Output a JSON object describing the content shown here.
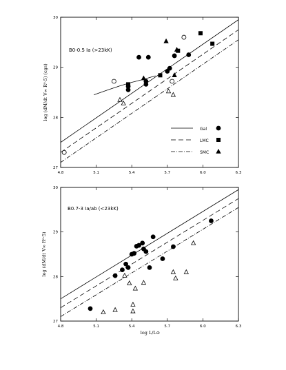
{
  "chart_data": [
    {
      "type": "scatter",
      "title": "B0-0.5 Ia (>23kK)",
      "xlabel": "",
      "ylabel": "log (dM/dt V∞ R⁰·5) (cgs)",
      "xlim": [
        4.8,
        6.3
      ],
      "ylim": [
        27,
        30
      ],
      "xticks": [
        "4.8",
        "5.1",
        "5.4",
        "5.7",
        "6.0",
        "6.3"
      ],
      "yticks": [
        "27",
        "28",
        "29",
        "30"
      ],
      "legend": {
        "placement": "middle-right",
        "entries": [
          {
            "label": "Gal",
            "line": "solid",
            "marker": "circle"
          },
          {
            "label": "LMC",
            "line": "dashed",
            "marker": "square"
          },
          {
            "label": "SMC",
            "line": "dashdot",
            "marker": "triangle"
          }
        ]
      },
      "lines": [
        {
          "name": "Gal",
          "style": "solid",
          "x": [
            4.8,
            6.3
          ],
          "y": [
            27.5,
            29.95
          ]
        },
        {
          "name": "LMC",
          "style": "dashed",
          "x": [
            4.8,
            6.3
          ],
          "y": [
            27.3,
            29.75
          ]
        },
        {
          "name": "SMC",
          "style": "dashdot",
          "x": [
            4.8,
            6.3
          ],
          "y": [
            27.1,
            29.55
          ]
        }
      ],
      "curve": {
        "x": [
          5.08,
          5.2,
          5.3,
          5.4,
          5.5,
          5.6
        ],
        "y": [
          28.45,
          28.55,
          28.63,
          28.7,
          28.76,
          28.83
        ]
      },
      "series": [
        {
          "name": "Gal filled",
          "marker": "circle",
          "filled": true,
          "x": [
            5.37,
            5.37,
            5.46,
            5.54,
            5.52,
            5.52,
            5.7,
            5.72,
            5.76,
            5.88
          ],
          "y": [
            28.62,
            28.55,
            29.2,
            29.2,
            28.72,
            28.66,
            28.92,
            28.98,
            29.23,
            29.25
          ]
        },
        {
          "name": "Gal open",
          "marker": "circle",
          "filled": false,
          "x": [
            4.83,
            5.25,
            5.74,
            5.84
          ],
          "y": [
            27.3,
            28.72,
            28.72,
            29.6
          ]
        },
        {
          "name": "LMC",
          "marker": "square",
          "filled": true,
          "x": [
            5.37,
            5.37,
            5.64,
            5.79,
            5.98,
            6.08
          ],
          "y": [
            28.66,
            28.63,
            28.84,
            29.33,
            29.68,
            29.47
          ]
        },
        {
          "name": "SMC filled",
          "marker": "triangle",
          "filled": true,
          "x": [
            5.5,
            5.69,
            5.76,
            5.78
          ],
          "y": [
            28.78,
            29.52,
            28.84,
            29.35
          ]
        },
        {
          "name": "SMC open",
          "marker": "triangle",
          "filled": false,
          "x": [
            5.3,
            5.33,
            5.71,
            5.75
          ],
          "y": [
            28.35,
            28.28,
            28.52,
            28.45
          ]
        }
      ]
    },
    {
      "type": "scatter",
      "title": "B0.7-3 Ia/ab (<23kK)",
      "xlabel": "log L/L⊙",
      "ylabel": "log (dM/dt V∞ R⁰·5)",
      "xlim": [
        4.8,
        6.3
      ],
      "ylim": [
        27,
        30
      ],
      "xticks": [
        "4.8",
        "5.1",
        "5.4",
        "5.7",
        "6.0",
        "6.3"
      ],
      "yticks": [
        "27",
        "28",
        "29",
        "30"
      ],
      "lines": [
        {
          "name": "Gal",
          "style": "solid",
          "x": [
            4.8,
            6.3
          ],
          "y": [
            27.5,
            29.95
          ]
        },
        {
          "name": "LMC",
          "style": "dashed",
          "x": [
            4.8,
            6.3
          ],
          "y": [
            27.3,
            29.75
          ]
        },
        {
          "name": "SMC",
          "style": "dashdot",
          "x": [
            4.8,
            6.3
          ],
          "y": [
            27.1,
            29.55
          ]
        }
      ],
      "series": [
        {
          "name": "filled",
          "marker": "circle",
          "filled": true,
          "x": [
            5.05,
            5.26,
            5.32,
            5.35,
            5.37,
            5.4,
            5.42,
            5.44,
            5.46,
            5.49,
            5.5,
            5.52,
            5.55,
            5.58,
            5.66,
            5.75,
            6.07
          ],
          "y": [
            27.28,
            28.02,
            28.15,
            28.28,
            28.2,
            28.5,
            28.52,
            28.68,
            28.7,
            28.75,
            28.62,
            28.56,
            28.2,
            28.89,
            28.4,
            28.67,
            29.25
          ]
        },
        {
          "name": "open",
          "marker": "triangle",
          "filled": false,
          "x": [
            5.16,
            5.26,
            5.34,
            5.38,
            5.41,
            5.41,
            5.43,
            5.5,
            5.75,
            5.77,
            5.86,
            5.92
          ],
          "y": [
            27.2,
            27.25,
            28.02,
            27.85,
            27.37,
            27.22,
            27.73,
            27.86,
            28.1,
            27.96,
            28.1,
            28.75
          ]
        }
      ]
    }
  ]
}
